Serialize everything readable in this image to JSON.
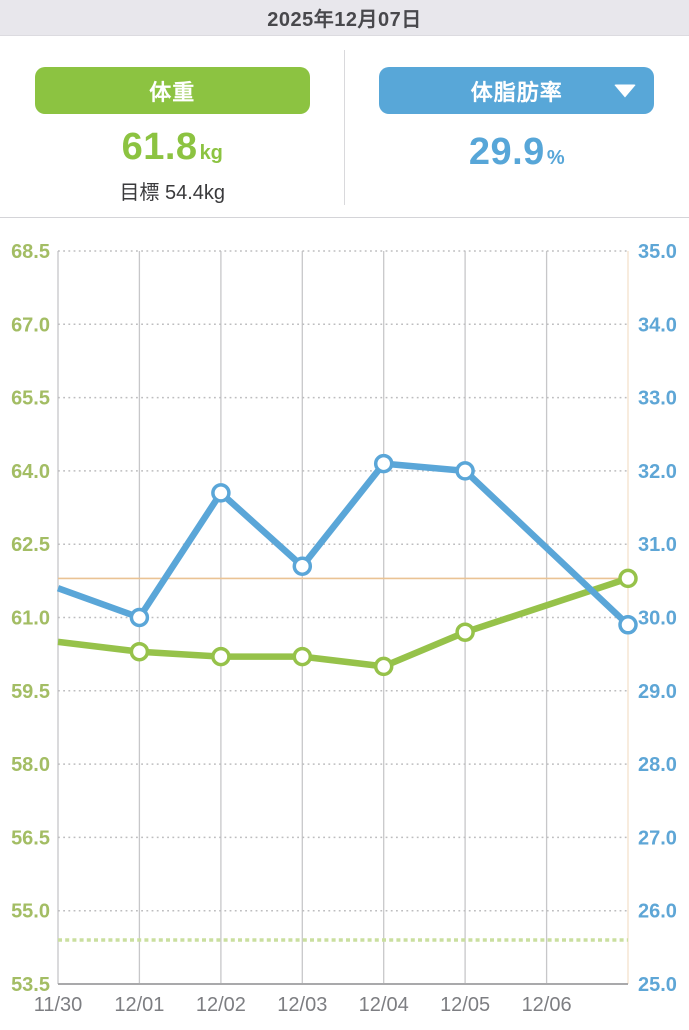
{
  "date_bar": {
    "date": "2025年12月07日"
  },
  "summary": {
    "weight": {
      "button_label": "体重",
      "value": "61.8",
      "unit": "kg",
      "goal": "目標 54.4kg",
      "color": "#8cc341"
    },
    "body_fat": {
      "button_label": "体脂肪率",
      "value": "29.9",
      "unit": "%",
      "color": "#58a7d8",
      "dropdown_icon": "caret-down-icon"
    }
  },
  "chart_data": {
    "type": "line",
    "x": [
      "11/30",
      "12/01",
      "12/02",
      "12/03",
      "12/04",
      "12/05",
      "12/06",
      "12/07"
    ],
    "x_tick_labels": [
      "11/30",
      "12/01",
      "12/02",
      "12/03",
      "12/04",
      "12/05",
      "12/06"
    ],
    "series": [
      {
        "name": "体重",
        "axis": "left",
        "color": "#96c24a",
        "values": [
          60.5,
          60.3,
          60.2,
          60.2,
          60.0,
          60.7,
          null,
          61.8
        ]
      },
      {
        "name": "体脂肪率",
        "axis": "right",
        "color": "#5aa6d8",
        "values": [
          30.4,
          30.0,
          31.7,
          30.7,
          32.1,
          32.0,
          null,
          29.9
        ]
      }
    ],
    "left_axis": {
      "min": 53.5,
      "max": 68.5,
      "tick_step": 1.5,
      "label_color": "#a3bd64",
      "tick_labels": [
        "68.5",
        "67.0",
        "65.5",
        "64.0",
        "62.5",
        "61.0",
        "59.5",
        "58.0",
        "56.5",
        "55.0",
        "53.5"
      ]
    },
    "right_axis": {
      "min": 25.0,
      "max": 35.0,
      "tick_step": 1.0,
      "label_color": "#5ea6d6",
      "tick_labels": [
        "35.0",
        "34.0",
        "33.0",
        "32.0",
        "31.0",
        "30.0",
        "29.0",
        "28.0",
        "27.0",
        "26.0",
        "25.0"
      ]
    },
    "reference_lines": [
      {
        "name": "current-weight-line",
        "axis": "left",
        "value": 61.8,
        "style": "solid",
        "color": "#eac394"
      },
      {
        "name": "goal-weight-line",
        "axis": "left",
        "value": 54.4,
        "style": "dashed",
        "color": "#cadf9f"
      }
    ],
    "grid": {
      "vertical_color": "#c7c7c9",
      "horizontal_dotted_color": "#bdbdbf",
      "bottom_axis_color": "#a9a9ab",
      "right_edge_color": "#f5e2cc",
      "x_label_color": "#7d7e82"
    },
    "legend_position": "none",
    "grid_on": true
  }
}
